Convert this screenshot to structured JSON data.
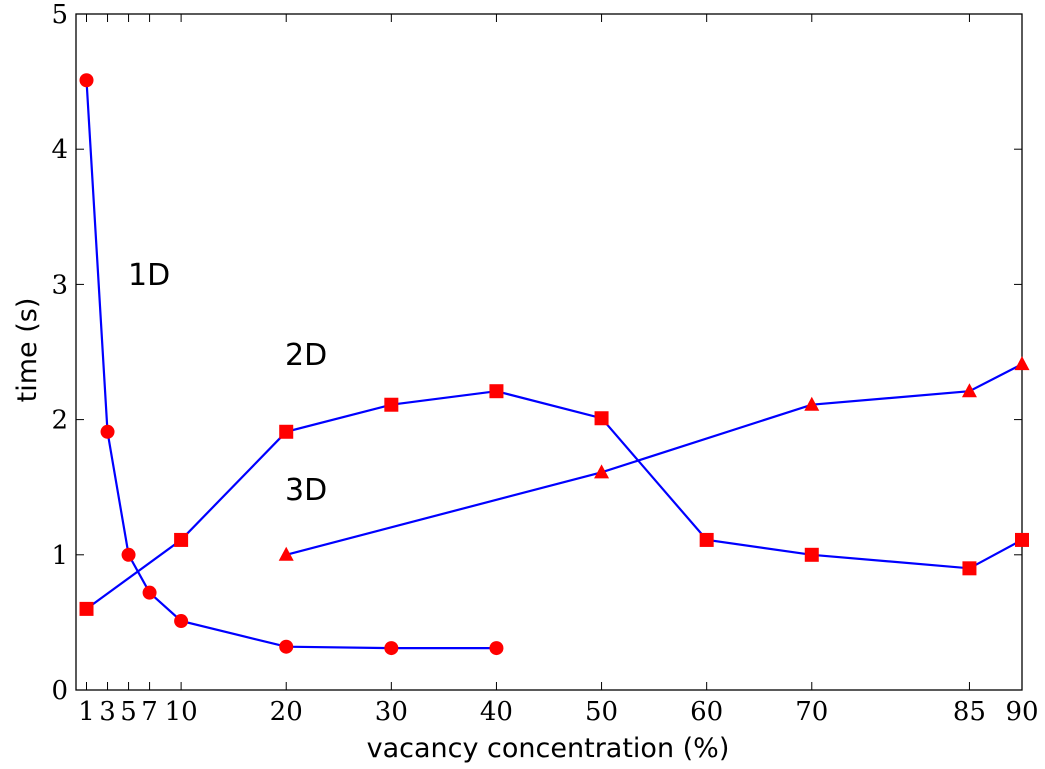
{
  "chart_data": {
    "type": "line",
    "title": "",
    "xlabel": "vacancy concentration (%)",
    "ylabel": "time (s)",
    "xlim": [
      0,
      90
    ],
    "ylim": [
      0,
      5
    ],
    "x_ticks": [
      1,
      3,
      5,
      7,
      10,
      20,
      30,
      40,
      50,
      60,
      70,
      85,
      90
    ],
    "y_ticks": [
      0,
      1,
      2,
      3,
      4,
      5
    ],
    "grid": false,
    "series": [
      {
        "name": "1D",
        "marker": "circle",
        "color": "#0000ff",
        "marker_color": "#ff0000",
        "x": [
          1,
          3,
          5,
          7,
          10,
          20,
          30,
          40
        ],
        "y": [
          4.51,
          1.91,
          1.0,
          0.72,
          0.51,
          0.32,
          0.31,
          0.31
        ]
      },
      {
        "name": "2D",
        "marker": "square",
        "color": "#0000ff",
        "marker_color": "#ff0000",
        "x": [
          1,
          10,
          20,
          30,
          40,
          50,
          60,
          70,
          85,
          90
        ],
        "y": [
          0.6,
          1.11,
          1.91,
          2.11,
          2.21,
          2.01,
          1.11,
          1.0,
          0.9,
          1.11
        ]
      },
      {
        "name": "3D",
        "marker": "triangle",
        "color": "#0000ff",
        "marker_color": "#ff0000",
        "x": [
          20,
          50,
          70,
          85,
          90
        ],
        "y": [
          1.0,
          1.61,
          2.11,
          2.21,
          2.41
        ]
      }
    ]
  }
}
